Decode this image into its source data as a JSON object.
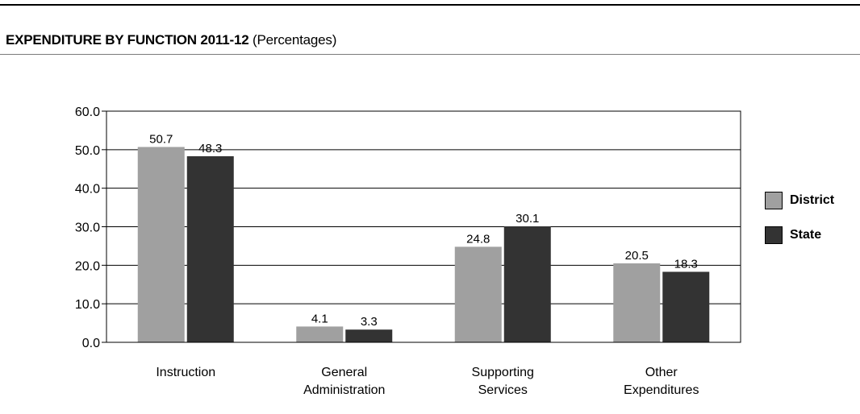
{
  "header": {
    "title_bold": "EXPENDITURE BY FUNCTION 2011-12",
    "title_rest": "(Percentages)"
  },
  "colors": {
    "district": "#a0a0a0",
    "state": "#333333"
  },
  "chart_data": {
    "type": "bar",
    "categories": [
      [
        "Instruction"
      ],
      [
        "General",
        "Administration"
      ],
      [
        "Supporting",
        "Services"
      ],
      [
        "Other",
        "Expenditures"
      ]
    ],
    "series": [
      {
        "name": "District",
        "values": [
          50.7,
          4.1,
          24.8,
          20.5
        ]
      },
      {
        "name": "State",
        "values": [
          48.3,
          3.3,
          30.1,
          18.3
        ]
      }
    ],
    "ylim": [
      0,
      60
    ],
    "yticks": [
      "0.0",
      "10.0",
      "20.0",
      "30.0",
      "40.0",
      "50.0",
      "60.0"
    ],
    "grid": true,
    "legend_position": "right"
  }
}
